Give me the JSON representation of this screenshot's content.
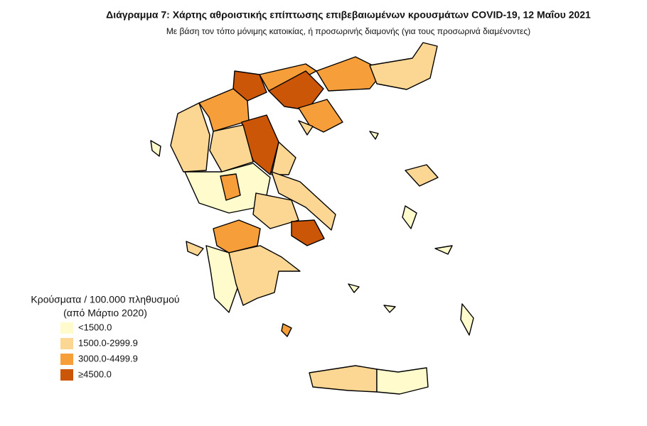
{
  "header": {
    "title": "Διάγραμμα 7: Χάρτης αθροιστικής επίπτωσης επιβεβαιωμένων κρουσμάτων COVID-19, 12 Μαΐου 2021",
    "subtitle": "Με βάση τον τόπο μόνιμης κατοικίας, ή προσωρινής διαμονής (για τους προσωρινά διαμένοντες)"
  },
  "legend": {
    "title": [
      "Κρούσματα / 100.000 πληθυσμού",
      "(από Μάρτιο 2020)"
    ],
    "items": [
      {
        "label": "<1500.0",
        "color": "#fffbcc"
      },
      {
        "label": "1500.0-2999.9",
        "color": "#fcd693"
      },
      {
        "label": "3000.0-4499.9",
        "color": "#f59e3a"
      },
      {
        "label": "≥4500.0",
        "color": "#cc5608"
      }
    ]
  }
}
